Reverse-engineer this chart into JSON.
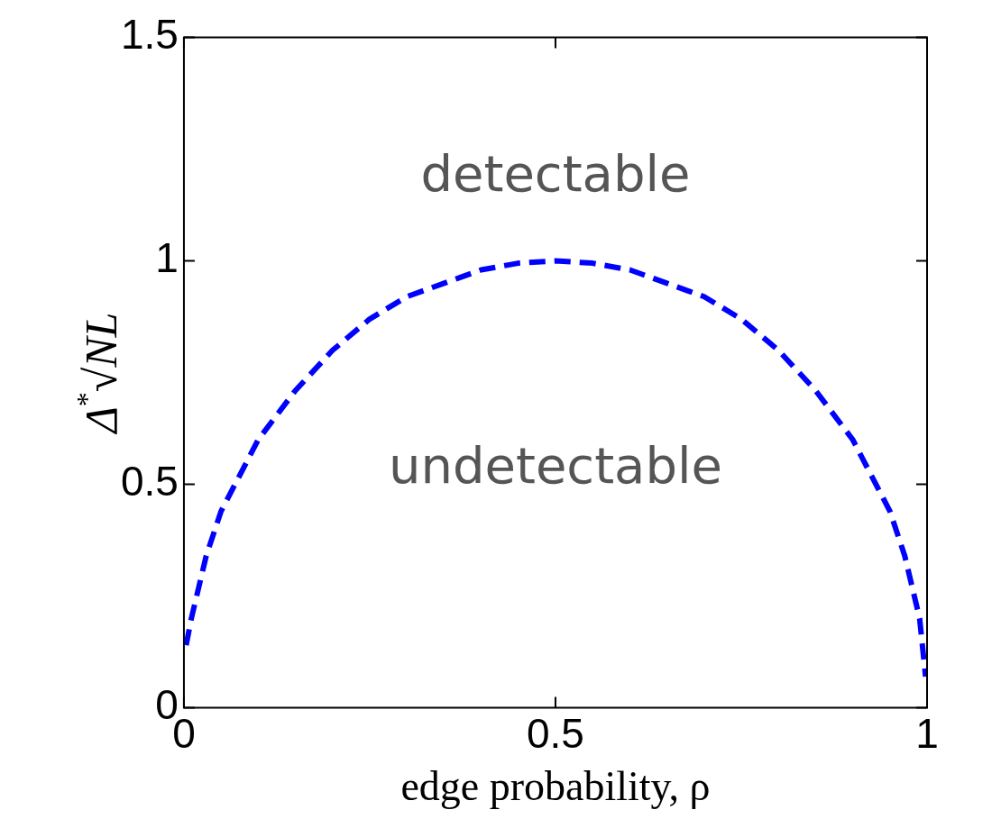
{
  "chart_data": {
    "type": "line",
    "xlabel": "edge probability, ρ",
    "ylabel": "Δ$^{*}$√NL",
    "x": [
      0.003,
      0.01,
      0.03,
      0.05,
      0.1,
      0.15,
      0.2,
      0.25,
      0.3,
      0.35,
      0.4,
      0.45,
      0.5,
      0.55,
      0.6,
      0.65,
      0.7,
      0.75,
      0.8,
      0.85,
      0.9,
      0.95,
      0.97,
      0.99,
      0.998
    ],
    "series": [
      {
        "color": "#0000ff",
        "values": [
          0.14,
          0.2,
          0.34,
          0.44,
          0.6,
          0.71,
          0.8,
          0.87,
          0.92,
          0.95,
          0.98,
          0.995,
          1.0,
          0.995,
          0.98,
          0.95,
          0.92,
          0.87,
          0.8,
          0.71,
          0.6,
          0.44,
          0.34,
          0.2,
          0.07
        ]
      }
    ],
    "xlim": [
      0,
      1
    ],
    "xticks": [
      0,
      0.5,
      1
    ],
    "ylim": [
      0,
      1.5
    ],
    "yticks": [
      0,
      0.5,
      1,
      1.5
    ],
    "annotations": [
      "detectable",
      "undetectable"
    ],
    "grid": false,
    "legend": false,
    "marker": "none",
    "line_style": "dashed"
  }
}
